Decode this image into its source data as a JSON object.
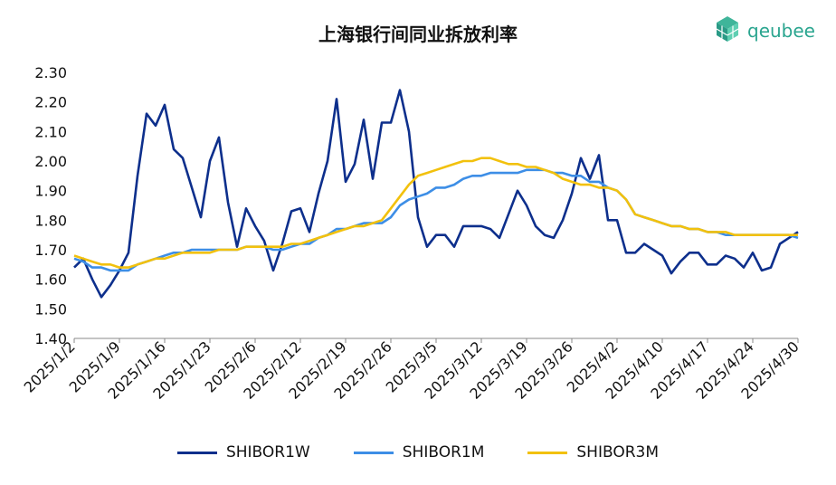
{
  "logo": {
    "text": "qeubee"
  },
  "chart_data": {
    "type": "line",
    "title": "上海银行间同业拆放利率",
    "xlabel": "",
    "ylabel": "",
    "ylim": [
      1.4,
      2.3
    ],
    "yticks": [
      "2.30",
      "2.20",
      "2.10",
      "2.00",
      "1.90",
      "1.80",
      "1.70",
      "1.60",
      "1.50",
      "1.40"
    ],
    "xtick_labels": [
      "2025/1/2",
      "2025/1/9",
      "2025/1/16",
      "2025/1/23",
      "2025/2/6",
      "2025/2/12",
      "2025/2/19",
      "2025/2/26",
      "2025/3/5",
      "2025/3/12",
      "2025/3/19",
      "2025/3/26",
      "2025/4/2",
      "2025/4/10",
      "2025/4/17",
      "2025/4/24",
      "2025/4/30"
    ],
    "legend_position": "bottom",
    "grid": false,
    "series": [
      {
        "name": "SHIBOR1W",
        "color": "#0d2f8c",
        "values": [
          1.64,
          1.67,
          1.6,
          1.54,
          1.58,
          1.63,
          1.69,
          1.95,
          2.16,
          2.12,
          2.19,
          2.04,
          2.01,
          1.91,
          1.81,
          2.0,
          2.08,
          1.86,
          1.71,
          1.84,
          1.78,
          1.73,
          1.63,
          1.72,
          1.83,
          1.84,
          1.76,
          1.89,
          2.0,
          2.21,
          1.93,
          1.99,
          2.14,
          1.94,
          2.13,
          2.13,
          2.24,
          2.1,
          1.81,
          1.71,
          1.75,
          1.75,
          1.71,
          1.78,
          1.78,
          1.78,
          1.77,
          1.74,
          1.82,
          1.9,
          1.85,
          1.78,
          1.75,
          1.74,
          1.8,
          1.89,
          2.01,
          1.94,
          2.02,
          1.8,
          1.8,
          1.69,
          1.69,
          1.72,
          1.7,
          1.68,
          1.62,
          1.66,
          1.69,
          1.69,
          1.65,
          1.65,
          1.68,
          1.67,
          1.64,
          1.69,
          1.63,
          1.64,
          1.72,
          1.74,
          1.76
        ]
      },
      {
        "name": "SHIBOR1M",
        "color": "#3d8ee6",
        "values": [
          1.67,
          1.66,
          1.64,
          1.64,
          1.63,
          1.63,
          1.63,
          1.65,
          1.66,
          1.67,
          1.68,
          1.69,
          1.69,
          1.7,
          1.7,
          1.7,
          1.7,
          1.7,
          1.7,
          1.71,
          1.71,
          1.71,
          1.7,
          1.7,
          1.71,
          1.72,
          1.72,
          1.74,
          1.75,
          1.77,
          1.77,
          1.78,
          1.79,
          1.79,
          1.79,
          1.81,
          1.85,
          1.87,
          1.88,
          1.89,
          1.91,
          1.91,
          1.92,
          1.94,
          1.95,
          1.95,
          1.96,
          1.96,
          1.96,
          1.96,
          1.97,
          1.97,
          1.97,
          1.96,
          1.96,
          1.95,
          1.95,
          1.93,
          1.93,
          1.91,
          1.9,
          1.87,
          1.82,
          1.81,
          1.8,
          1.79,
          1.78,
          1.78,
          1.77,
          1.77,
          1.76,
          1.76,
          1.75,
          1.75,
          1.75,
          1.75,
          1.75,
          1.75,
          1.75,
          1.75,
          1.74
        ]
      },
      {
        "name": "SHIBOR3M",
        "color": "#f2c10d",
        "values": [
          1.68,
          1.67,
          1.66,
          1.65,
          1.65,
          1.64,
          1.64,
          1.65,
          1.66,
          1.67,
          1.67,
          1.68,
          1.69,
          1.69,
          1.69,
          1.69,
          1.7,
          1.7,
          1.7,
          1.71,
          1.71,
          1.71,
          1.71,
          1.71,
          1.72,
          1.72,
          1.73,
          1.74,
          1.75,
          1.76,
          1.77,
          1.78,
          1.78,
          1.79,
          1.8,
          1.84,
          1.88,
          1.92,
          1.95,
          1.96,
          1.97,
          1.98,
          1.99,
          2.0,
          2.0,
          2.01,
          2.01,
          2.0,
          1.99,
          1.99,
          1.98,
          1.98,
          1.97,
          1.96,
          1.94,
          1.93,
          1.92,
          1.92,
          1.91,
          1.91,
          1.9,
          1.87,
          1.82,
          1.81,
          1.8,
          1.79,
          1.78,
          1.78,
          1.77,
          1.77,
          1.76,
          1.76,
          1.76,
          1.75,
          1.75,
          1.75,
          1.75,
          1.75,
          1.75,
          1.75,
          1.75
        ]
      }
    ]
  }
}
